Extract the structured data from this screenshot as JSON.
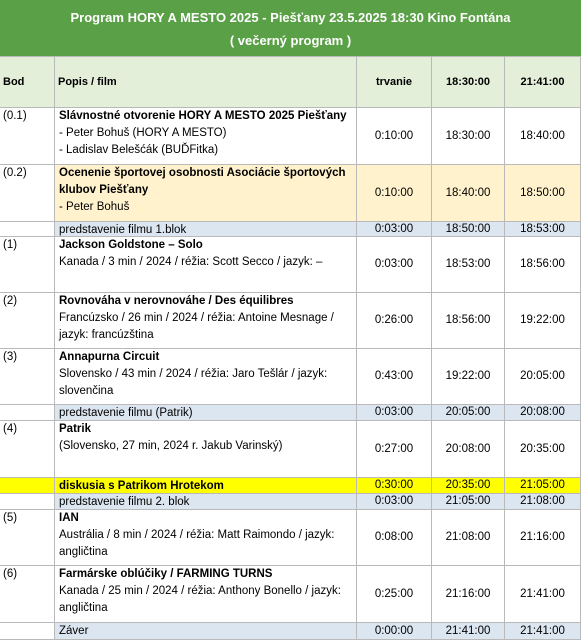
{
  "header": {
    "title": "Program HORY A MESTO 2025 - Piešťany 23.5.2025 18:30 Kino Fontána",
    "subtitle": "( večerný program )"
  },
  "table": {
    "columns": [
      "Bod",
      "Popis / film",
      "trvanie",
      "18:30:00",
      "21:41:00"
    ],
    "rows": [
      {
        "bod": "(0.1)",
        "title": "Slávnostné otvorenie HORY A MESTO 2025 Piešťany",
        "details": [
          "- Peter Bohuš (HORY A MESTO)",
          "- Ladislav Belešćák (BUĎFitka)"
        ],
        "duration": "0:10:00",
        "start": "18:30:00",
        "end": "18:40:00"
      },
      {
        "bod": "(0.2)",
        "title": "Ocenenie športovej osobnosti Asociácie športových klubov Piešťany",
        "details": [
          "- Peter Bohuš"
        ],
        "duration": "0:10:00",
        "start": "18:40:00",
        "end": "18:50:00"
      },
      {
        "title": "predstavenie filmu 1.blok",
        "duration": "0:03:00",
        "start": "18:50:00",
        "end": "18:53:00"
      },
      {
        "bod": "(1)",
        "title": "Jackson Goldstone – Solo",
        "details": [
          "Kanada / 3 min / 2024 / réžia: Scott Secco / jazyk: –"
        ],
        "duration": "0:03:00",
        "start": "18:53:00",
        "end": "18:56:00"
      },
      {
        "bod": "(2)",
        "title": "Rovnováha v nerovnováhe / Des équilibres",
        "details": [
          "Francúzsko / 26 min / 2024 / réžia: Antoine Mesnage / jazyk: francúzština"
        ],
        "duration": "0:26:00",
        "start": "18:56:00",
        "end": "19:22:00"
      },
      {
        "bod": "(3)",
        "title": "Annapurna Circuit",
        "details": [
          "Slovensko / 43 min / 2024 / réžia: Jaro Tešlár / jazyk: slovenčina"
        ],
        "duration": "0:43:00",
        "start": "19:22:00",
        "end": "20:05:00"
      },
      {
        "title": "predstavenie filmu (Patrik)",
        "duration": "0:03:00",
        "start": "20:05:00",
        "end": "20:08:00"
      },
      {
        "bod": "(4)",
        "title": "Patrik",
        "details": [
          "(Slovensko, 27 min, 2024 r. Jakub Varinský)"
        ],
        "duration": "0:27:00",
        "start": "20:08:00",
        "end": "20:35:00"
      },
      {
        "title": "diskusia s Patrikom Hrotekom",
        "duration": "0:30:00",
        "start": "20:35:00",
        "end": "21:05:00"
      },
      {
        "title": "predstavenie filmu 2. blok",
        "duration": "0:03:00",
        "start": "21:05:00",
        "end": "21:08:00"
      },
      {
        "bod": "(5)",
        "title": "IAN",
        "details": [
          "Austrália / 8 min / 2024 / réžia: Matt Raimondo / jazyk: angličtina"
        ],
        "duration": "0:08:00",
        "start": "21:08:00",
        "end": "21:16:00"
      },
      {
        "bod": "(6)",
        "title": "Farmárske oblúčiky / FARMING TURNS",
        "details": [
          "Kanada / 25 min / 2024 / réžia: Anthony Bonello / jazyk: angličtina"
        ],
        "duration": "0:25:00",
        "start": "21:16:00",
        "end": "21:41:00"
      },
      {
        "title": "Záver",
        "duration": "0:00:00",
        "start": "21:41:00",
        "end": "21:41:00"
      }
    ]
  }
}
